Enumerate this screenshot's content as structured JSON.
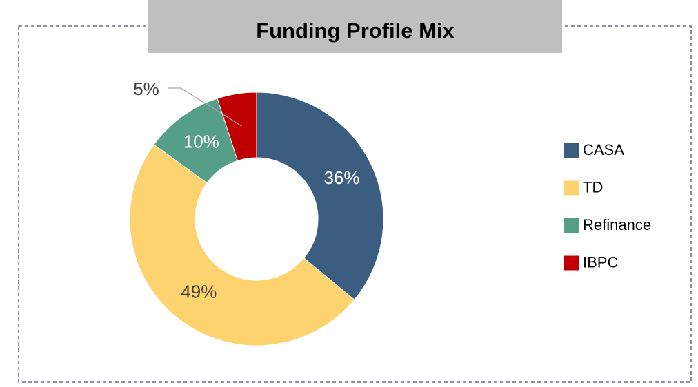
{
  "chart_data": {
    "type": "donut",
    "title": "Funding Profile Mix",
    "categories": [
      "CASA",
      "TD",
      "Refinance",
      "IBPC"
    ],
    "values": [
      36,
      49,
      10,
      5
    ],
    "value_labels": [
      "36%",
      "49%",
      "10%",
      "5%"
    ],
    "colors": [
      "#3b5e80",
      "#fdd36f",
      "#559e88",
      "#c00000"
    ],
    "legend": "right"
  }
}
